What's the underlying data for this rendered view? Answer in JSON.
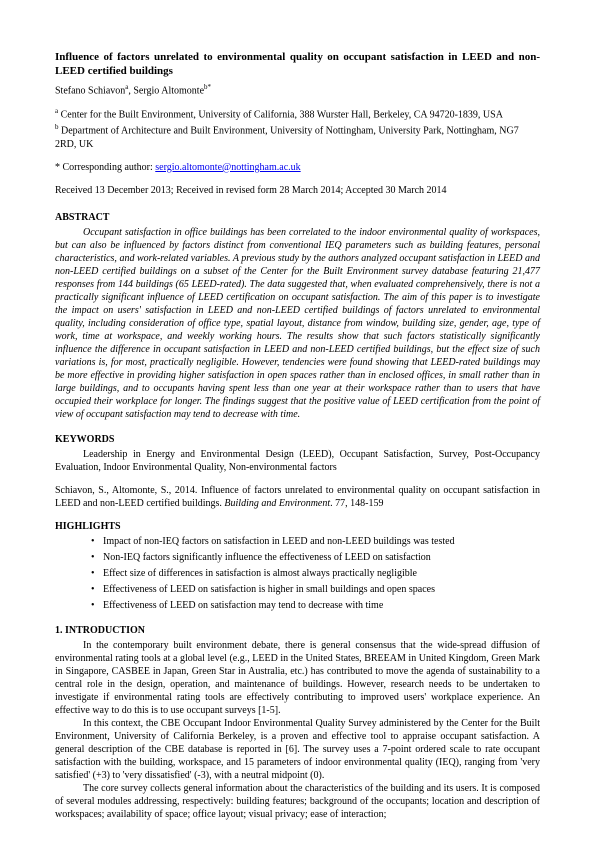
{
  "title": "Influence of factors unrelated to environmental quality on occupant satisfaction in LEED and non-LEED certified buildings",
  "authors": "Stefano Schiavon",
  "author_sup_a": "a",
  "author2": ", Sergio Altomonte",
  "author_sup_b": "b*",
  "affiliations": {
    "a_marker": "a",
    "a_text": " Center for the Built Environment, University of California, 388 Wurster Hall, Berkeley, CA 94720-1839, USA",
    "b_marker": "b",
    "b_text": " Department of Architecture and Built Environment, University of Nottingham, University Park, Nottingham, NG7 2RD, UK"
  },
  "corresponding_label": "* Corresponding author: ",
  "corresponding_email": "sergio.altomonte@nottingham.ac.uk",
  "dates": "Received 13 December 2013; Received in revised form 28 March 2014; Accepted 30 March 2014",
  "abstract_heading": "ABSTRACT",
  "abstract_body": "Occupant satisfaction in office buildings has been correlated to the indoor environmental quality of workspaces, but can also be influenced by factors distinct from conventional IEQ parameters such as building features, personal characteristics, and work-related variables. A previous study by the authors analyzed occupant satisfaction in LEED and non-LEED certified buildings on a subset of the Center for the Built Environment survey database featuring 21,477 responses from 144 buildings (65 LEED-rated). The data suggested that, when evaluated comprehensively, there is not a practically significant influence of LEED certification on occupant satisfaction. The aim of this paper is to investigate the impact on users' satisfaction in LEED and non-LEED certified buildings of factors unrelated to environmental quality, including consideration of office type, spatial layout, distance from window, building size, gender, age, type of work, time at workspace, and weekly working hours. The results show that such factors statistically significantly influence the difference in occupant satisfaction in LEED and non-LEED certified buildings, but the effect size of such variations is, for most, practically negligible. However, tendencies were found showing that LEED-rated buildings may be more effective in providing higher satisfaction in open spaces rather than in enclosed offices, in small rather than in large buildings, and to occupants having spent less than one year at their workspace rather than to users that have occupied their workplace for longer. The findings suggest that the positive value of LEED certification from the point of view of occupant satisfaction may tend to decrease with time.",
  "keywords_heading": "KEYWORDS",
  "keywords_body": "Leadership in Energy and Environmental Design (LEED), Occupant Satisfaction, Survey, Post-Occupancy Evaluation, Indoor Environmental Quality, Non-environmental factors",
  "citation_pre": "Schiavon, S., Altomonte, S., 2014. Influence of factors unrelated to environmental quality on occupant satisfaction in LEED and non-LEED certified buildings. ",
  "citation_journal": "Building and Environment",
  "citation_post": ". 77, 148-159",
  "highlights_heading": "HIGHLIGHTS",
  "highlights": [
    "Impact of non-IEQ factors on satisfaction in LEED and non-LEED buildings was tested",
    "Non-IEQ factors significantly influence the effectiveness of LEED on satisfaction",
    "Effect size of differences in satisfaction is almost always practically negligible",
    "Effectiveness of LEED on satisfaction is higher in small buildings and open spaces",
    "Effectiveness of LEED on satisfaction may tend to decrease with time"
  ],
  "intro_heading": "1. INTRODUCTION",
  "intro_p1": "In the contemporary built environment debate, there is general consensus that the wide-spread diffusion of environmental rating tools at a global level (e.g., LEED in the United States, BREEAM in United Kingdom, Green Mark in Singapore, CASBEE in Japan, Green Star in Australia, etc.) has contributed to move the agenda of sustainability to a central role in the design, operation, and maintenance of buildings. However, research needs to be undertaken to investigate if environmental rating tools are effectively contributing to improved users' workplace experience. An effective way to do this is to use occupant surveys [1-5].",
  "intro_p2": "In this context, the CBE Occupant Indoor Environmental Quality Survey administered by the Center for the Built Environment, University of California Berkeley, is a proven and effective tool to appraise occupant satisfaction. A general description of the CBE database is reported in [6]. The survey uses a 7-point ordered scale to rate occupant satisfaction with the building, workspace, and 15 parameters of indoor environmental quality (IEQ), ranging from 'very satisfied' (+3) to 'very dissatisfied' (-3), with a neutral midpoint (0).",
  "intro_p3": "The core survey collects general information about the characteristics of the building and its users. It is composed of several modules addressing, respectively: building features; background of the occupants; location and description of workspaces; availability of space; office layout; visual privacy; ease of interaction;"
}
